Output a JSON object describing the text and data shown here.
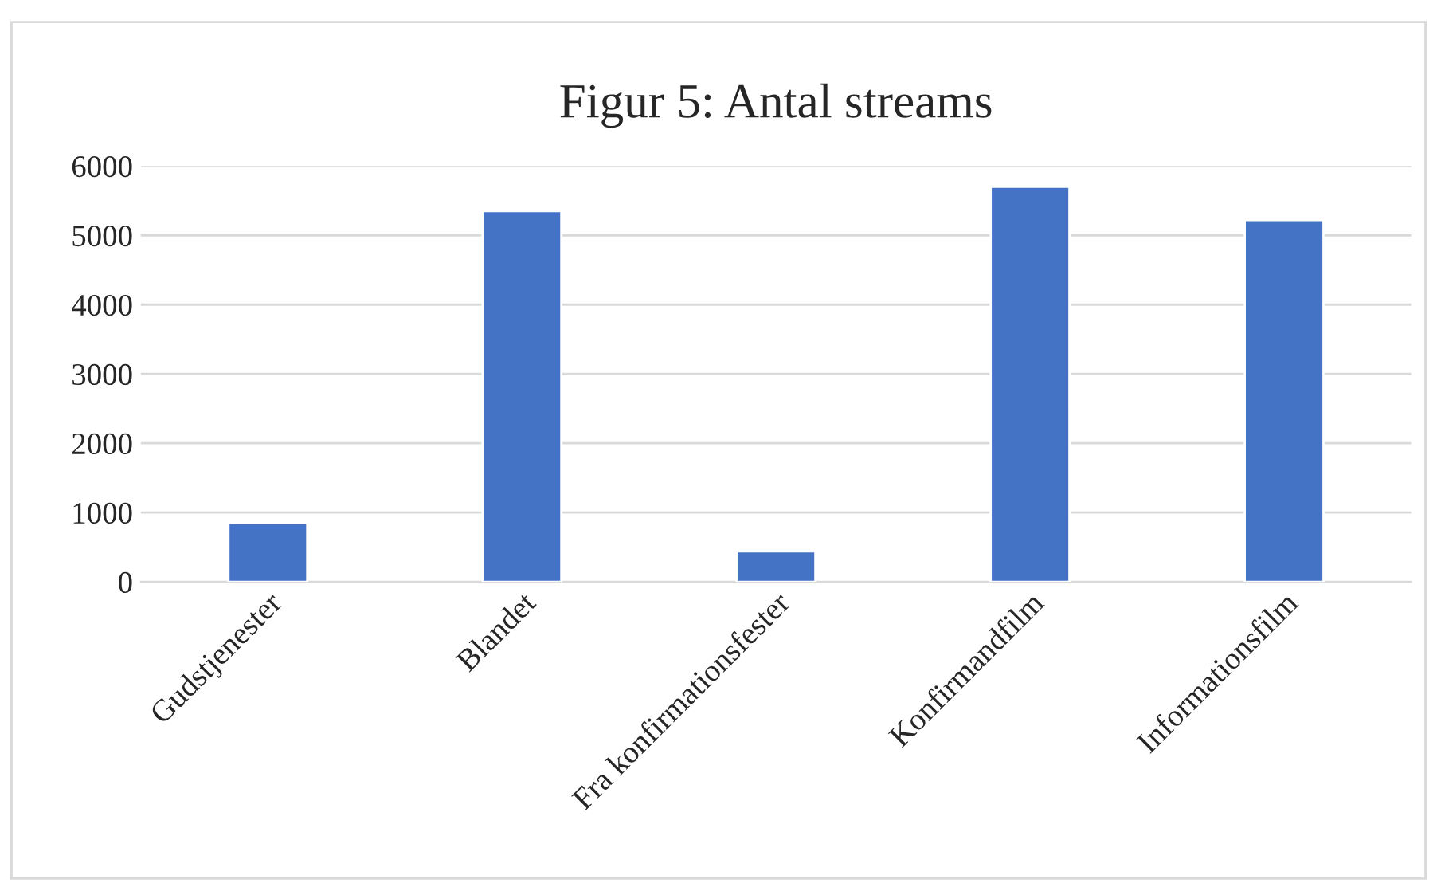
{
  "chart_data": {
    "type": "bar",
    "title": "Figur 5: Antal streams",
    "categories": [
      "Gudstjenester",
      "Blandet",
      "Fra konfirmationsfester",
      "Konfirmandfilm",
      "Informationsfilm"
    ],
    "values": [
      850,
      5350,
      440,
      5700,
      5220
    ],
    "color": "#4472c4",
    "ylim": [
      0,
      6000
    ],
    "yticks": [
      0,
      1000,
      2000,
      3000,
      4000,
      5000,
      6000
    ],
    "grid": "y"
  }
}
